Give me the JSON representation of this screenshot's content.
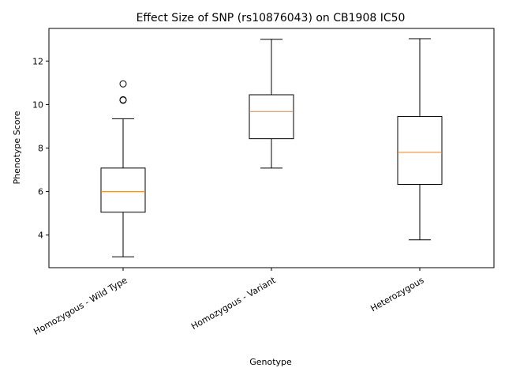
{
  "chart_data": {
    "type": "box",
    "title": "Effect Size of SNP (rs10876043) on CB1908 IC50",
    "xlabel": "Genotype",
    "ylabel": "Phenotype Score",
    "ylim": [
      2.5,
      13.5
    ],
    "yticks": [
      4,
      6,
      8,
      10,
      12
    ],
    "categories": [
      "Homozygous - Wild Type",
      "Homozygous - Variant",
      "Heterozygous"
    ],
    "boxes": [
      {
        "whisker_low": 3.0,
        "q1": 5.05,
        "median": 6.0,
        "q3": 7.08,
        "whisker_high": 9.35,
        "outliers": [
          10.2,
          10.22,
          10.95
        ]
      },
      {
        "whisker_low": 7.08,
        "q1": 8.43,
        "median": 9.68,
        "q3": 10.45,
        "whisker_high": 13.0,
        "outliers": []
      },
      {
        "whisker_low": 3.78,
        "q1": 6.33,
        "median": 7.8,
        "q3": 9.45,
        "whisker_high": 13.03,
        "outliers": []
      }
    ],
    "colors": {
      "box": "#000000",
      "median": "#ff7f0e",
      "outlier_edge": "#000000"
    },
    "grid": false,
    "xtick_rotation_deg": 30
  }
}
